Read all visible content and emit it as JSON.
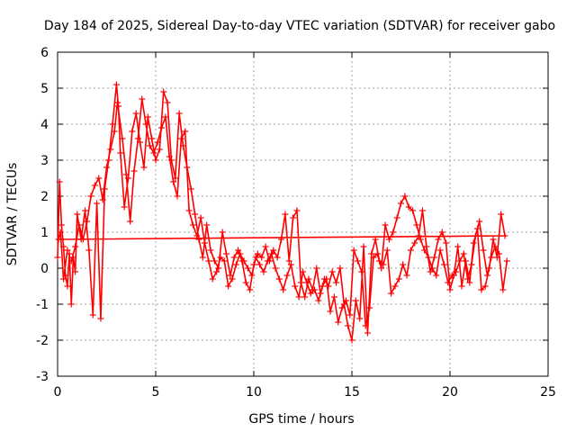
{
  "chart_data": {
    "type": "scatter",
    "title": "Day 184 of 2025, Sidereal Day-to-day VTEC variation (SDTVAR) for receiver gabo",
    "xlabel": "GPS time / hours",
    "ylabel": "SDTVAR / TECUs",
    "xlim": [
      0,
      25
    ],
    "ylim": [
      -3,
      6
    ],
    "xticks": [
      "0",
      "5",
      "10",
      "15",
      "20",
      "25"
    ],
    "yticks": [
      "-3",
      "-2",
      "-1",
      "0",
      "1",
      "2",
      "3",
      "4",
      "5",
      "6"
    ],
    "grid": true,
    "marker": "plus",
    "series": [
      {
        "name": "gabo",
        "color": "#ff0000",
        "x": [
          0.0,
          0.1,
          0.2,
          0.3,
          0.4,
          0.5,
          0.6,
          0.7,
          0.8,
          0.9,
          1.0,
          1.2,
          1.4,
          1.6,
          1.8,
          2.0,
          2.2,
          2.4,
          2.6,
          2.8,
          3.0,
          3.1,
          3.2,
          3.4,
          3.6,
          3.8,
          4.0,
          4.2,
          4.4,
          4.6,
          4.8,
          5.0,
          5.2,
          5.4,
          5.6,
          5.8,
          6.0,
          6.2,
          6.4,
          6.6,
          6.8,
          7.0,
          7.2,
          7.4,
          7.6,
          7.8,
          8.0,
          8.2,
          8.4,
          8.6,
          8.8,
          9.0,
          9.2,
          9.4,
          9.6,
          9.8,
          10.0,
          10.2,
          10.4,
          10.6,
          10.8,
          11.0,
          11.2,
          11.4,
          11.6,
          11.8,
          12.0,
          12.2,
          12.4,
          12.6,
          12.8,
          13.0,
          13.2,
          13.4,
          13.6,
          13.8,
          14.0,
          14.2,
          14.4,
          14.6,
          14.8,
          15.0,
          15.2,
          15.4,
          15.6,
          15.8,
          16.0,
          16.2,
          16.4,
          16.6,
          16.8,
          17.0,
          17.2,
          17.4,
          17.6,
          17.8,
          18.0,
          18.2,
          18.4,
          18.6,
          18.8,
          19.0,
          19.2,
          19.4,
          19.6,
          19.8,
          20.0,
          20.2,
          20.4,
          20.6,
          20.8,
          21.0,
          21.2,
          21.4,
          21.6,
          21.8,
          22.0,
          22.2,
          22.4,
          22.6,
          22.8,
          0.05,
          0.15,
          0.3,
          0.5,
          0.7,
          0.9,
          1.1,
          1.3,
          1.5,
          1.7,
          1.9,
          2.1,
          2.3,
          2.5,
          2.7,
          2.9,
          3.05,
          3.3,
          3.5,
          3.7,
          3.9,
          4.1,
          4.3,
          4.5,
          4.7,
          4.9,
          5.1,
          5.3,
          5.5,
          5.7,
          5.9,
          6.1,
          6.3,
          6.5,
          6.7,
          6.9,
          7.1,
          7.3,
          7.5,
          7.7,
          7.9,
          8.1,
          8.3,
          8.5,
          8.7,
          8.9,
          9.1,
          9.3,
          9.5,
          9.7,
          9.9,
          10.1,
          10.3,
          10.5,
          10.7,
          10.9,
          11.1,
          11.3,
          11.5,
          11.7,
          11.9,
          12.1,
          12.3,
          12.5,
          12.7,
          12.9,
          13.1,
          13.3,
          13.5,
          13.7,
          13.9,
          14.1,
          14.3,
          14.5,
          14.7,
          14.9,
          15.1,
          15.3,
          15.5,
          15.7,
          15.9,
          16.1,
          16.3,
          16.5,
          16.7,
          16.9,
          17.1,
          17.3,
          17.5,
          17.7,
          17.9,
          18.1,
          18.3,
          18.5,
          18.7,
          18.9,
          19.1,
          19.3,
          19.5,
          19.7,
          19.9,
          20.1,
          20.3,
          20.5,
          20.7,
          20.9,
          21.1,
          21.3,
          21.5,
          21.7,
          21.9,
          22.1,
          22.3,
          22.5,
          22.7,
          22.9
        ],
        "y": [
          0.3,
          2.4,
          1.2,
          0.6,
          -0.2,
          -0.5,
          0.4,
          -1.0,
          0.3,
          -0.1,
          1.5,
          0.8,
          1.6,
          0.5,
          -1.3,
          1.8,
          -1.4,
          2.2,
          3.0,
          4.0,
          5.1,
          4.5,
          3.2,
          1.7,
          2.5,
          3.8,
          4.3,
          3.5,
          2.8,
          4.2,
          3.6,
          3.0,
          3.3,
          4.9,
          4.6,
          3.0,
          2.5,
          4.3,
          3.4,
          2.8,
          2.2,
          1.5,
          0.8,
          0.3,
          1.2,
          0.5,
          0.2,
          0.0,
          1.0,
          0.4,
          -0.2,
          0.3,
          0.5,
          0.2,
          -0.4,
          -0.6,
          0.1,
          0.4,
          0.3,
          0.6,
          0.2,
          0.5,
          0.3,
          0.8,
          1.5,
          0.2,
          1.4,
          1.6,
          -0.4,
          -0.8,
          -0.3,
          -0.6,
          0.0,
          -0.7,
          -0.3,
          -0.5,
          -0.1,
          -0.4,
          0.0,
          -1.0,
          -1.6,
          -2.0,
          -0.9,
          -1.4,
          0.6,
          -1.8,
          0.4,
          0.8,
          0.2,
          0.1,
          0.5,
          -0.7,
          -0.5,
          -0.3,
          0.1,
          -0.2,
          0.5,
          0.7,
          0.9,
          1.6,
          0.6,
          -0.1,
          0.3,
          0.8,
          1.0,
          0.7,
          -0.6,
          -0.2,
          0.6,
          -0.5,
          0.2,
          -0.4,
          0.7,
          1.1,
          -0.6,
          -0.5,
          0.0,
          0.8,
          0.3,
          1.5,
          0.9,
          0.8,
          1.0,
          -0.3,
          0.5,
          0.2,
          0.6,
          1.2,
          0.8,
          1.3,
          2.0,
          2.3,
          2.5,
          1.9,
          2.8,
          3.3,
          3.8,
          4.6,
          3.6,
          2.6,
          1.3,
          2.7,
          3.6,
          4.7,
          4.0,
          3.4,
          3.2,
          3.5,
          3.9,
          4.2,
          3.1,
          2.4,
          2.0,
          3.6,
          3.8,
          1.6,
          1.2,
          0.9,
          1.4,
          0.7,
          0.2,
          -0.3,
          -0.1,
          0.3,
          0.2,
          -0.5,
          -0.3,
          0.1,
          0.4,
          0.2,
          0.0,
          -0.2,
          0.3,
          0.1,
          -0.1,
          0.2,
          0.4,
          0.0,
          -0.3,
          -0.6,
          -0.2,
          0.1,
          -0.5,
          -0.8,
          -0.1,
          -0.4,
          -0.7,
          -0.6,
          -0.9,
          -0.5,
          -0.3,
          -1.2,
          -0.8,
          -1.5,
          -1.1,
          -0.9,
          -1.3,
          0.5,
          0.2,
          -0.1,
          -1.6,
          -1.1,
          0.3,
          0.4,
          0.0,
          1.2,
          0.8,
          1.0,
          1.4,
          1.8,
          2.0,
          1.7,
          1.6,
          1.2,
          0.8,
          0.5,
          0.3,
          0.0,
          -0.2,
          0.5,
          0.1,
          -0.4,
          -0.2,
          -0.1,
          0.2,
          0.4,
          -0.3,
          0.1,
          0.9,
          1.3,
          0.5,
          -0.2,
          0.3,
          0.6,
          0.4,
          -0.6,
          0.2
        ]
      }
    ]
  }
}
